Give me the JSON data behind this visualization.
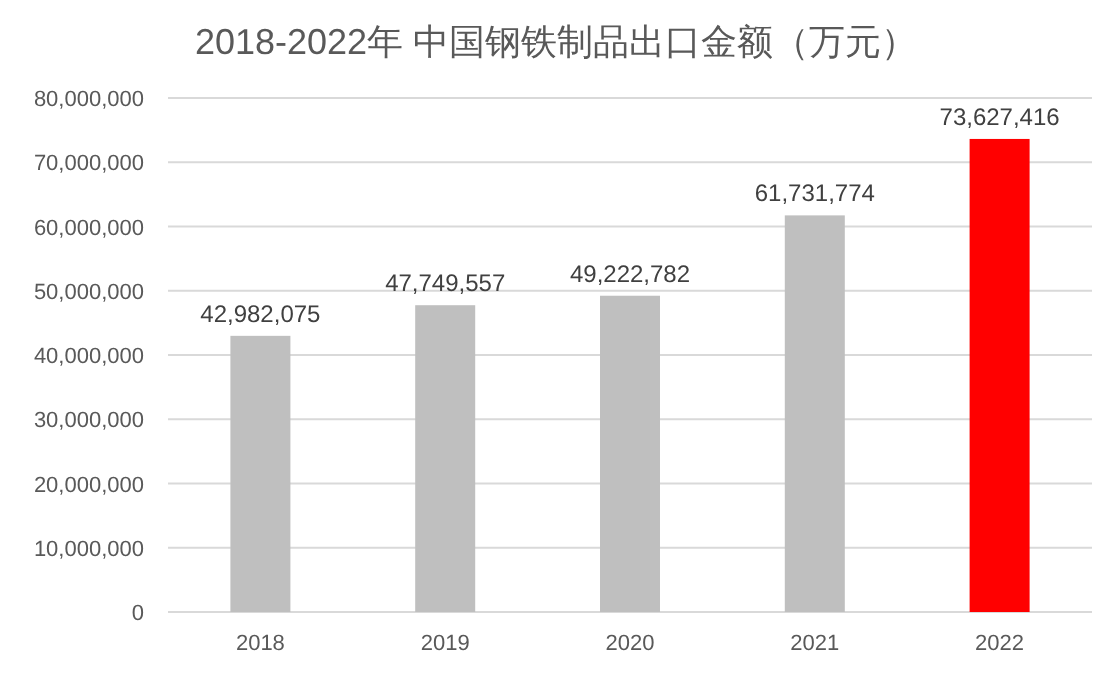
{
  "chart_data": {
    "type": "bar",
    "title": "2018-2022年 中国钢铁制品出口金额（万元）",
    "categories": [
      "2018",
      "2019",
      "2020",
      "2021",
      "2022"
    ],
    "values": [
      42982075,
      47749557,
      49222782,
      61731774,
      73627416
    ],
    "colors": [
      "#bfbfbf",
      "#bfbfbf",
      "#bfbfbf",
      "#bfbfbf",
      "#ff0000"
    ],
    "ylim": [
      0,
      80000000
    ],
    "yticks": [
      0,
      {
        "value": 10000000,
        "label": "10,000,000"
      },
      {
        "value": 20000000,
        "label": "20,000,000"
      },
      {
        "value": 30000000,
        "label": "30,000,000"
      },
      {
        "value": 40000000,
        "label": "40,000,000"
      },
      {
        "value": 50000000,
        "label": "50,000,000"
      },
      {
        "value": 60000000,
        "label": "60,000,000"
      },
      {
        "value": 70000000,
        "label": "70,000,000"
      },
      {
        "value": 80000000,
        "label": "80,000,000"
      }
    ],
    "value_labels": [
      "42,982,075",
      "47,749,557",
      "49,222,782",
      "61,731,774",
      "73,627,416"
    ],
    "grid": "y"
  }
}
